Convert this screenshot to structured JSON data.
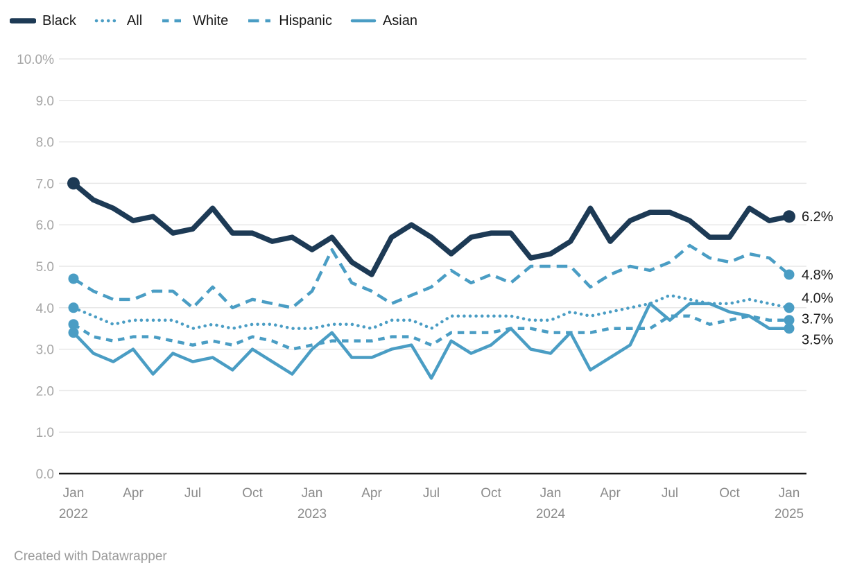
{
  "colors": {
    "navy": "#1d3a55",
    "blue": "#4a9dc4",
    "grid": "#e7e7e7",
    "axis": "#151515",
    "y_tick_text": "#a5a5a5",
    "x_tick_text": "#8b8b8b",
    "label_text": "#191919",
    "footer_text": "#9b9b9b"
  },
  "footer": {
    "credit": "Created with Datawrapper"
  },
  "chart_data": {
    "type": "line",
    "title": "",
    "xlabel": "",
    "ylabel": "",
    "ylim": [
      0,
      10
    ],
    "grid": true,
    "legend_position": "top",
    "x": "monthly from Jan 2022 to Jan 2025",
    "y_ticks": [
      "10.0%",
      "9.0",
      "8.0",
      "7.0",
      "6.0",
      "5.0",
      "4.0",
      "3.0",
      "2.0",
      "1.0",
      "0.0"
    ],
    "x_ticks": [
      {
        "index": 0,
        "month": "Jan",
        "year": "2022"
      },
      {
        "index": 3,
        "month": "Apr"
      },
      {
        "index": 6,
        "month": "Jul"
      },
      {
        "index": 9,
        "month": "Oct"
      },
      {
        "index": 12,
        "month": "Jan",
        "year": "2023"
      },
      {
        "index": 15,
        "month": "Apr"
      },
      {
        "index": 18,
        "month": "Jul"
      },
      {
        "index": 21,
        "month": "Oct"
      },
      {
        "index": 24,
        "month": "Jan",
        "year": "2024"
      },
      {
        "index": 27,
        "month": "Apr"
      },
      {
        "index": 30,
        "month": "Jul"
      },
      {
        "index": 33,
        "month": "Oct"
      },
      {
        "index": 36,
        "month": "Jan",
        "year": "2025"
      }
    ],
    "series": [
      {
        "name": "Black",
        "style": "solid-thick",
        "color_key": "navy",
        "end_label": "6.2%",
        "values": [
          7.0,
          6.6,
          6.4,
          6.1,
          6.2,
          5.8,
          5.9,
          6.4,
          5.8,
          5.8,
          5.6,
          5.7,
          5.4,
          5.7,
          5.1,
          4.8,
          5.7,
          6.0,
          5.7,
          5.3,
          5.7,
          5.8,
          5.8,
          5.2,
          5.3,
          5.6,
          6.4,
          5.6,
          6.1,
          6.3,
          6.3,
          6.1,
          5.7,
          5.7,
          6.4,
          6.1,
          6.2
        ]
      },
      {
        "name": "All",
        "style": "dotted",
        "color_key": "blue",
        "end_label": "4.0%",
        "values": [
          4.0,
          3.8,
          3.6,
          3.7,
          3.7,
          3.7,
          3.5,
          3.6,
          3.5,
          3.6,
          3.6,
          3.5,
          3.5,
          3.6,
          3.6,
          3.5,
          3.7,
          3.7,
          3.5,
          3.8,
          3.8,
          3.8,
          3.8,
          3.7,
          3.7,
          3.9,
          3.8,
          3.9,
          4.0,
          4.1,
          4.3,
          4.2,
          4.1,
          4.1,
          4.2,
          4.1,
          4.0
        ]
      },
      {
        "name": "White",
        "style": "dashed-short",
        "color_key": "blue",
        "end_label": "3.7%",
        "values": [
          3.6,
          3.3,
          3.2,
          3.3,
          3.3,
          3.2,
          3.1,
          3.2,
          3.1,
          3.3,
          3.2,
          3.0,
          3.1,
          3.2,
          3.2,
          3.2,
          3.3,
          3.3,
          3.1,
          3.4,
          3.4,
          3.4,
          3.5,
          3.5,
          3.4,
          3.4,
          3.4,
          3.5,
          3.5,
          3.5,
          3.8,
          3.8,
          3.6,
          3.7,
          3.8,
          3.7,
          3.7
        ]
      },
      {
        "name": "Hispanic",
        "style": "dashed-long",
        "color_key": "blue",
        "end_label": "4.8%",
        "values": [
          4.7,
          4.4,
          4.2,
          4.2,
          4.4,
          4.4,
          4.0,
          4.5,
          4.0,
          4.2,
          4.1,
          4.0,
          4.4,
          5.4,
          4.6,
          4.4,
          4.1,
          4.3,
          4.5,
          4.9,
          4.6,
          4.8,
          4.6,
          5.0,
          5.0,
          5.0,
          4.5,
          4.8,
          5.0,
          4.9,
          5.1,
          5.5,
          5.2,
          5.1,
          5.3,
          5.2,
          4.8
        ]
      },
      {
        "name": "Asian",
        "style": "solid",
        "color_key": "blue",
        "end_label": "3.5%",
        "values": [
          3.4,
          2.9,
          2.7,
          3.0,
          2.4,
          2.9,
          2.7,
          2.8,
          2.5,
          3.0,
          2.7,
          2.4,
          3.0,
          3.4,
          2.8,
          2.8,
          3.0,
          3.1,
          2.3,
          3.2,
          2.9,
          3.1,
          3.5,
          3.0,
          2.9,
          3.4,
          2.5,
          2.8,
          3.1,
          4.1,
          3.7,
          4.1,
          4.1,
          3.9,
          3.8,
          3.5,
          3.5
        ]
      }
    ]
  }
}
